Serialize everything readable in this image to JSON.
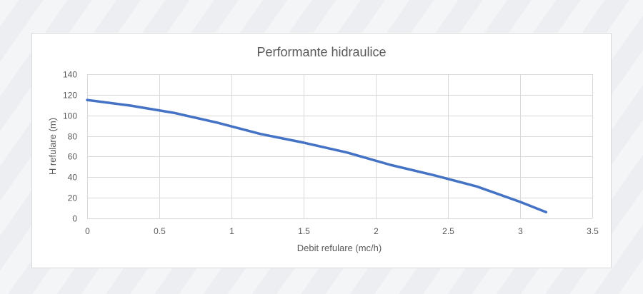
{
  "chart_data": {
    "type": "line",
    "title": "Performante hidraulice",
    "xlabel": "Debit refulare (mc/h)",
    "ylabel": "H refulare (m)",
    "xlim": [
      0,
      3.5
    ],
    "ylim": [
      0,
      140
    ],
    "x_ticks": [
      "0",
      "0.5",
      "1",
      "1.5",
      "2",
      "2.5",
      "3",
      "3.5"
    ],
    "y_ticks": [
      "0",
      "20",
      "40",
      "60",
      "80",
      "100",
      "120",
      "140"
    ],
    "grid": true,
    "legend": "none",
    "colors": {
      "line": "#4472c4",
      "grid": "#d9d9d9",
      "text": "#595959",
      "title": "#595959"
    },
    "series": [
      {
        "x": [
          0,
          0.3,
          0.6,
          0.9,
          1.2,
          1.5,
          1.8,
          2.1,
          2.4,
          2.7,
          3.0,
          3.18
        ],
        "y": [
          115,
          109.5,
          102.5,
          93,
          82,
          73.5,
          64,
          52,
          42,
          31,
          16,
          6
        ]
      }
    ]
  }
}
